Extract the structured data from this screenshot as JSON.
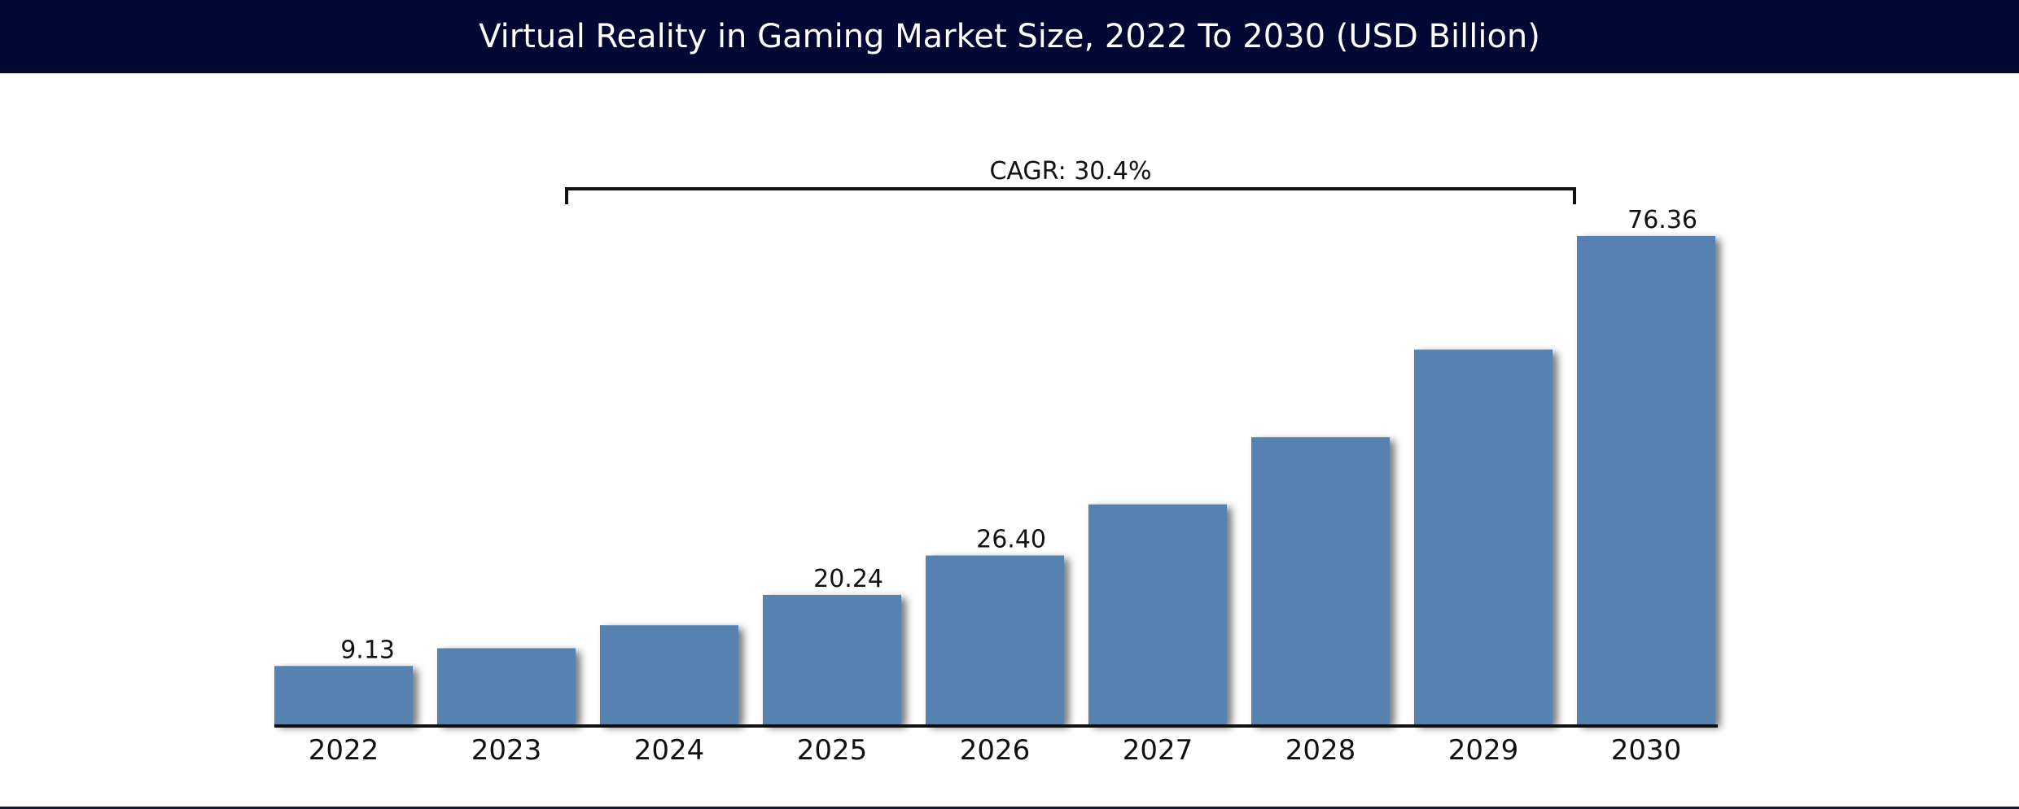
{
  "header": {
    "title": "Virtual Reality in Gaming Market Size, 2022 To 2030 (USD Billion)"
  },
  "colors": {
    "header_bg": "#000833",
    "bar": "#5582B0",
    "axis": "#111111"
  },
  "chart_data": {
    "type": "bar",
    "title": "Virtual Reality in Gaming Market Size, 2022 To 2030 (USD Billion)",
    "xlabel": "",
    "ylabel": "",
    "categories": [
      "2022",
      "2023",
      "2024",
      "2025",
      "2026",
      "2027",
      "2028",
      "2029",
      "2030"
    ],
    "values": [
      9.13,
      11.9,
      15.5,
      20.24,
      26.4,
      34.4,
      44.9,
      58.6,
      76.36
    ],
    "data_labels": [
      "9.13",
      "",
      "",
      "20.24",
      "26.40",
      "",
      "",
      "",
      "76.36"
    ],
    "ylim": [
      0,
      80
    ],
    "grid": false,
    "legend": "none",
    "annotation": {
      "text": "CAGR: 30.4%",
      "from_category": "2024",
      "to_category": "2029"
    }
  }
}
